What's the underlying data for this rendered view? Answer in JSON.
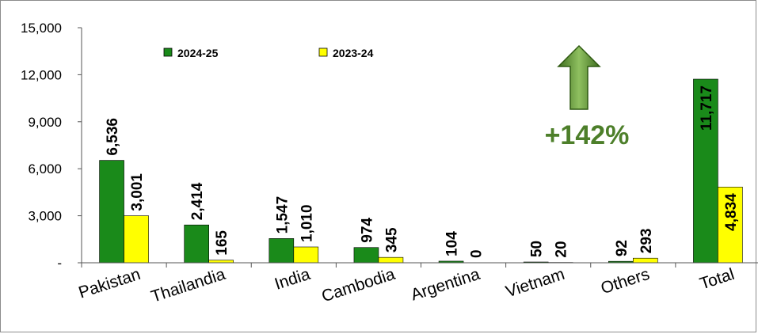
{
  "chart_data": {
    "type": "bar",
    "categories": [
      "Pakistan",
      "Thailandia",
      "India",
      "Cambodia",
      "Argentina",
      "Vietnam",
      "Others",
      "Total"
    ],
    "series": [
      {
        "name": "2024-25",
        "color": "#1a8a1a",
        "values": [
          6536,
          2414,
          1547,
          974,
          104,
          50,
          92,
          11717
        ],
        "labels": [
          "6,536",
          "2,414",
          "1,547",
          "974",
          "104",
          "50",
          "92",
          "11,717"
        ]
      },
      {
        "name": "2023-24",
        "color": "#ffff00",
        "values": [
          3001,
          165,
          1010,
          345,
          0,
          20,
          293,
          4834
        ],
        "labels": [
          "3,001",
          "165",
          "1,010",
          "345",
          "0",
          "20",
          "293",
          "4,834"
        ]
      }
    ],
    "yticks": [
      "-",
      "3,000",
      "6,000",
      "9,000",
      "12,000",
      "15,000"
    ],
    "ylim": [
      0,
      15000
    ],
    "legend_position": "top",
    "annotation": {
      "text": "+142%",
      "color": "#4d7f2a",
      "arrow": "up-arrow-icon"
    }
  }
}
